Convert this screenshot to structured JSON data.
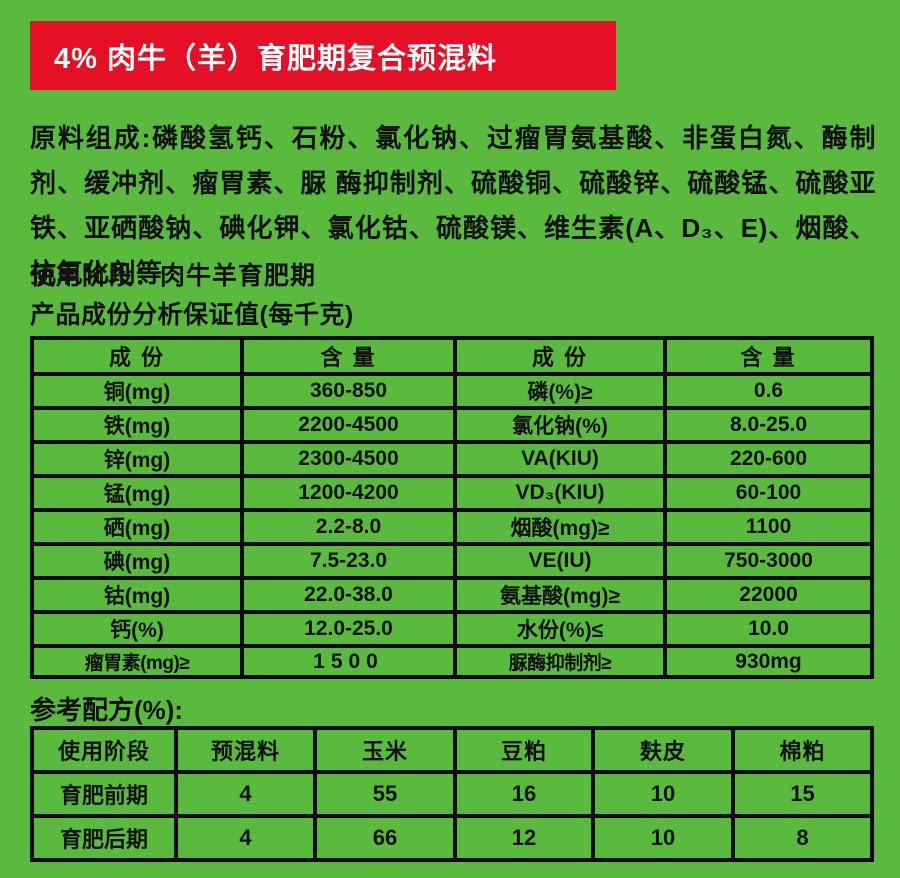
{
  "colors": {
    "background_green": "#59ba3e",
    "banner_red": "#e50f26",
    "banner_text": "#ffffff",
    "table_border": "#0c0c0c",
    "text": "#121212"
  },
  "banner": {
    "title": "4% 肉牛（羊）育肥期复合预混料"
  },
  "composition": {
    "label": "原料组成:",
    "text": "磷酸氢钙、石粉、氯化钠、过瘤胃氨基酸、非蛋白氮、酶制剂、缓冲剂、瘤胃素、脲 酶抑制剂、硫酸铜、硫酸锌、硫酸锰、硫酸亚铁、亚硒酸钠、碘化钾、氯化钴、硫酸镁、维生素(A、D₃、E)、烟酸、抗氧化剂等"
  },
  "usage_stage": "使用阶段：肉牛羊育肥期",
  "guarantee_title": "产品成份分析保证值(每千克)",
  "analysis_table": {
    "headers": [
      "成 份",
      "含 量",
      "成 份",
      "含 量"
    ],
    "rows": [
      [
        "铜(mg)",
        "360-850",
        "磷(%)≥",
        "0.6"
      ],
      [
        "铁(mg)",
        "2200-4500",
        "氯化钠(%)",
        "8.0-25.0"
      ],
      [
        "锌(mg)",
        "2300-4500",
        "VA(KIU)",
        "220-600"
      ],
      [
        "锰(mg)",
        "1200-4200",
        "VD₃(KIU)",
        "60-100"
      ],
      [
        "硒(mg)",
        "2.2-8.0",
        "烟酸(mg)≥",
        "1100"
      ],
      [
        "碘(mg)",
        "7.5-23.0",
        "VE(IU)",
        "750-3000"
      ],
      [
        "钴(mg)",
        "22.0-38.0",
        "氨基酸(mg)≥",
        "22000"
      ],
      [
        "钙(%)",
        "12.0-25.0",
        "水份(%)≤",
        "10.0"
      ],
      [
        "瘤胃素(mg)≥",
        "1500",
        "脲酶抑制剂≥",
        "930mg"
      ]
    ]
  },
  "formula": {
    "title": "参考配方(%):",
    "headers": [
      "使用阶段",
      "预混料",
      "玉米",
      "豆粕",
      "麸皮",
      "棉粕"
    ],
    "rows": [
      [
        "育肥前期",
        "4",
        "55",
        "16",
        "10",
        "15"
      ],
      [
        "育肥后期",
        "4",
        "66",
        "12",
        "10",
        "8"
      ]
    ]
  }
}
